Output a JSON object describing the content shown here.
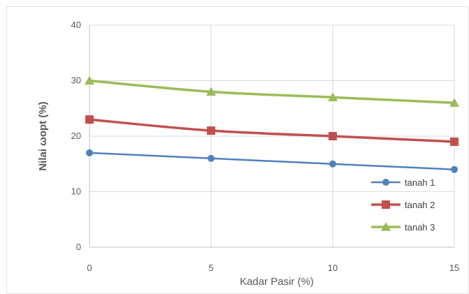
{
  "chart_data": {
    "type": "line",
    "title": "",
    "xlabel": "Kadar Pasir (%)",
    "ylabel": "Nilai ωopt (%)",
    "x": [
      0,
      5,
      10,
      15
    ],
    "xticks": [
      "0",
      "5",
      "10",
      "15"
    ],
    "yticks": [
      "0",
      "10",
      "20",
      "30",
      "40"
    ],
    "xlim": [
      0,
      15
    ],
    "ylim": [
      0,
      40
    ],
    "grid": true,
    "legend_position": "bottom-right",
    "series": [
      {
        "name": "tanah 1",
        "values": [
          17,
          16,
          15,
          14
        ],
        "color": "#4F81BD",
        "marker": "circle"
      },
      {
        "name": "tanah 2",
        "values": [
          23,
          21,
          20,
          19
        ],
        "color": "#C0504D",
        "marker": "square"
      },
      {
        "name": "tanah 3",
        "values": [
          30,
          28,
          27,
          26
        ],
        "color": "#9BBB59",
        "marker": "triangle"
      }
    ]
  }
}
